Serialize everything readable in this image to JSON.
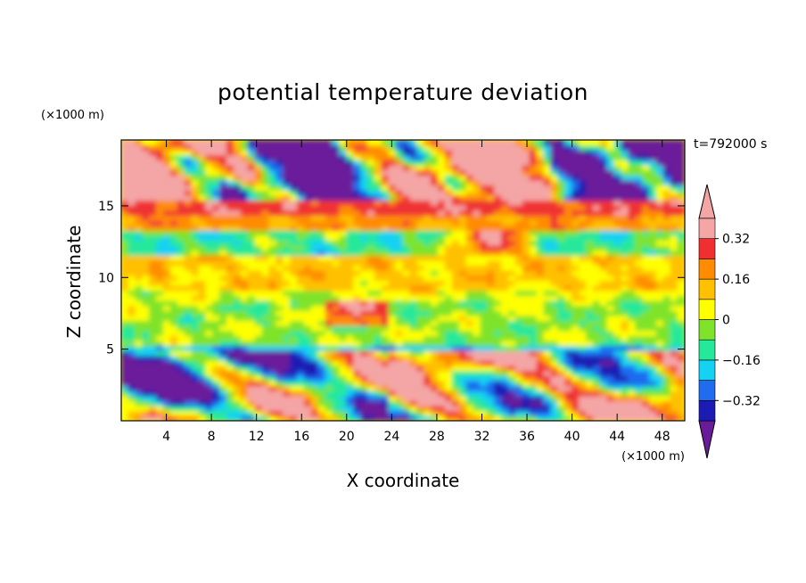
{
  "chart_data": {
    "type": "heatmap",
    "title": "potential temperature deviation",
    "xlabel": "X coordinate",
    "ylabel": "Z coordinate",
    "x_units": "(×1000 m)",
    "y_units": "(×1000 m)",
    "time_label": "t=792000 s",
    "x_range": [
      0,
      50
    ],
    "y_range": [
      0,
      19.6
    ],
    "x_ticks": [
      4,
      8,
      12,
      16,
      20,
      24,
      28,
      32,
      36,
      40,
      44,
      48
    ],
    "y_ticks": [
      5,
      10,
      15
    ],
    "colorbar": {
      "levels": [
        -0.4,
        -0.32,
        -0.24,
        -0.16,
        -0.08,
        0,
        0.08,
        0.16,
        0.24,
        0.32,
        0.4
      ],
      "tick_values": [
        -0.32,
        -0.16,
        0,
        0.16,
        0.32
      ],
      "tick_labels": [
        "-0.32",
        "-0.16",
        "0",
        "0.16",
        "0.32"
      ],
      "under_color": "#6a1b9a",
      "over_color": "#f4a6a6",
      "colors": [
        "#1c1cb4",
        "#1f6cf0",
        "#14d2f2",
        "#25e89a",
        "#7fe32a",
        "#ffff00",
        "#ffc000",
        "#ff8c00",
        "#f03030",
        "#f4a6a6"
      ],
      "extend": "both"
    },
    "layers": [
      {
        "z_range": [
          15.2,
          19.6
        ],
        "description_value": "mixed, mostly under/over extremes"
      },
      {
        "z_range": [
          13.5,
          15.2
        ],
        "value": 0.3
      },
      {
        "z_range": [
          11.5,
          13.5
        ],
        "value": -0.1
      },
      {
        "z_range": [
          8.5,
          11.5
        ],
        "value": 0.1
      },
      {
        "z_range": [
          5.2,
          8.5
        ],
        "value": -0.02
      },
      {
        "z_range": [
          0,
          5.2
        ],
        "description_value": "turbulent mixed"
      }
    ]
  }
}
